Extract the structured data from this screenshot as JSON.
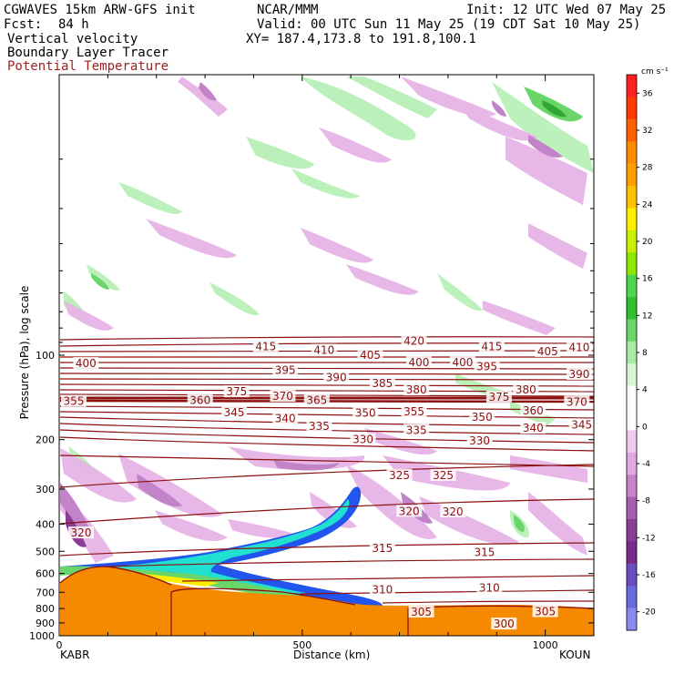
{
  "header": {
    "model": "CGWAVES 15km ARW-GFS init",
    "fcst_label": "Fcst:",
    "fcst_value": "84 h",
    "org": "NCAR/MMM",
    "init": "Init: 12 UTC Wed 07 May 25",
    "valid": "Valid: 00 UTC Sun 11 May 25 (19 CDT Sat 10 May 25)",
    "xy": "XY= 187.4,173.8 to 191.8,100.1",
    "fields": [
      "Vertical velocity",
      "Boundary Layer Tracer"
    ],
    "theta_field": "Potential Temperature"
  },
  "colors": {
    "theta_contour": "#8b1010",
    "terrain": "#f58a00",
    "updraft_light": "#b8f0b8",
    "updraft_mid": "#6ad66a",
    "updraft_strong": "#2ea82e",
    "downdraft_light": "#e6b4e6",
    "downdraft_mid": "#c283c8",
    "downdraft_strong": "#8a3c96",
    "tracer_blue": "#2255ee",
    "tracer_cyan": "#22e0d0"
  },
  "chart_data": {
    "type": "contour",
    "xlabel": "Distance (km)",
    "ylabel": "Pressure (hPa), log scale",
    "xlim": [
      0,
      1100
    ],
    "ylim": [
      1000,
      10
    ],
    "x_ticks": [
      "0",
      "500",
      "1000"
    ],
    "x_tick_values": [
      0,
      500,
      1000
    ],
    "y_ticks": [
      "100",
      "200",
      "300",
      "400",
      "500",
      "600",
      "700",
      "800",
      "900",
      "1000"
    ],
    "y_tick_values": [
      100,
      200,
      300,
      400,
      500,
      600,
      700,
      800,
      900,
      1000
    ],
    "left_station": "KABR",
    "right_station": "KOUN",
    "theta_labels": [
      {
        "text": "420",
        "x": 730,
        "p": 89
      },
      {
        "text": "415",
        "x": 425,
        "p": 93
      },
      {
        "text": "410",
        "x": 545,
        "p": 96
      },
      {
        "text": "405",
        "x": 640,
        "p": 100
      },
      {
        "text": "400",
        "x": 740,
        "p": 106
      },
      {
        "text": "400",
        "x": 830,
        "p": 106
      },
      {
        "text": "415",
        "x": 890,
        "p": 93
      },
      {
        "text": "405",
        "x": 1005,
        "p": 97
      },
      {
        "text": "410",
        "x": 1070,
        "p": 94
      },
      {
        "text": "400",
        "x": 55,
        "p": 107
      },
      {
        "text": "395",
        "x": 465,
        "p": 113
      },
      {
        "text": "390",
        "x": 570,
        "p": 120
      },
      {
        "text": "395",
        "x": 880,
        "p": 110
      },
      {
        "text": "390",
        "x": 1070,
        "p": 117
      },
      {
        "text": "385",
        "x": 665,
        "p": 126
      },
      {
        "text": "380",
        "x": 735,
        "p": 133
      },
      {
        "text": "380",
        "x": 960,
        "p": 133
      },
      {
        "text": "375",
        "x": 365,
        "p": 135
      },
      {
        "text": "375",
        "x": 905,
        "p": 141
      },
      {
        "text": "370",
        "x": 460,
        "p": 140
      },
      {
        "text": "370",
        "x": 1065,
        "p": 147
      },
      {
        "text": "365",
        "x": 530,
        "p": 145
      },
      {
        "text": "360",
        "x": 290,
        "p": 145
      },
      {
        "text": "360",
        "x": 975,
        "p": 158
      },
      {
        "text": "355",
        "x": 30,
        "p": 146
      },
      {
        "text": "355",
        "x": 730,
        "p": 159
      },
      {
        "text": "350",
        "x": 630,
        "p": 161
      },
      {
        "text": "350",
        "x": 870,
        "p": 166
      },
      {
        "text": "345",
        "x": 360,
        "p": 160
      },
      {
        "text": "345",
        "x": 1075,
        "p": 177
      },
      {
        "text": "340",
        "x": 465,
        "p": 168
      },
      {
        "text": "340",
        "x": 975,
        "p": 182
      },
      {
        "text": "335",
        "x": 535,
        "p": 179
      },
      {
        "text": "335",
        "x": 735,
        "p": 185
      },
      {
        "text": "330",
        "x": 625,
        "p": 200
      },
      {
        "text": "330",
        "x": 865,
        "p": 202
      },
      {
        "text": "325",
        "x": 700,
        "p": 268
      },
      {
        "text": "325",
        "x": 790,
        "p": 268
      },
      {
        "text": "320",
        "x": 720,
        "p": 360
      },
      {
        "text": "320",
        "x": 810,
        "p": 362
      },
      {
        "text": "320",
        "x": 45,
        "p": 430
      },
      {
        "text": "315",
        "x": 665,
        "p": 487
      },
      {
        "text": "315",
        "x": 875,
        "p": 505
      },
      {
        "text": "310",
        "x": 665,
        "p": 685
      },
      {
        "text": "310",
        "x": 885,
        "p": 675
      },
      {
        "text": "305",
        "x": 745,
        "p": 823
      },
      {
        "text": "305",
        "x": 1000,
        "p": 820
      },
      {
        "text": "300",
        "x": 915,
        "p": 908
      }
    ],
    "colorbar": {
      "unit": "cm s⁻¹",
      "ticks": [
        "36",
        "32",
        "28",
        "24",
        "20",
        "16",
        "12",
        "8",
        "4",
        "0",
        "-4",
        "-8",
        "-12",
        "-16",
        "-20"
      ],
      "tick_values": [
        36,
        32,
        28,
        24,
        20,
        16,
        12,
        8,
        4,
        0,
        -4,
        -8,
        -12,
        -16,
        -20
      ],
      "colors": [
        "#ff2020",
        "#ff3b00",
        "#ff6000",
        "#ff8c00",
        "#ffa000",
        "#ffc000",
        "#ffee00",
        "#c8f000",
        "#8ee800",
        "#4cd84c",
        "#30c030",
        "#6ad66a",
        "#a6eaa6",
        "#d6f6d6",
        "#ffffff",
        "#ffffff",
        "#f0c8f0",
        "#e0a8e0",
        "#c883c8",
        "#a85cb0",
        "#8a3c96",
        "#7a2a8a",
        "#6a4ec0",
        "#6a6ae0",
        "#8a8aee"
      ]
    }
  }
}
